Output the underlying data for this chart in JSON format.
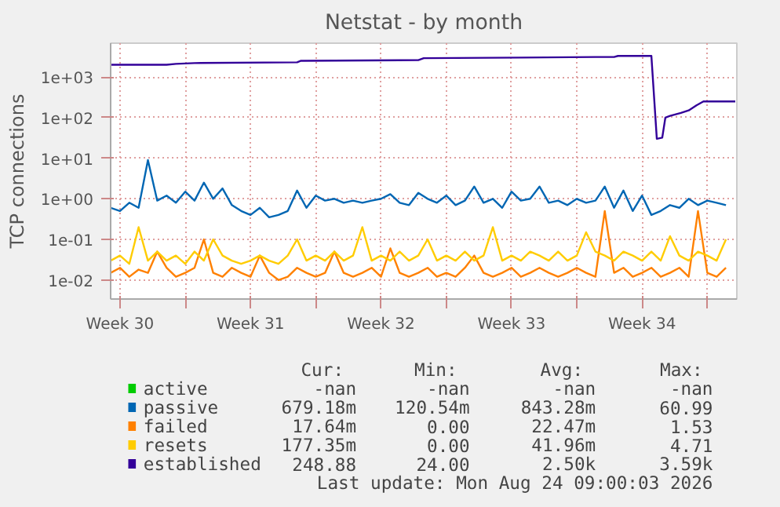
{
  "chart_data": {
    "type": "line",
    "title": "Netstat - by month",
    "ylabel": "TCP connections",
    "log": true,
    "grid": true,
    "legend": "bottom",
    "xlim": [
      "2026-07-23T00:00",
      "2026-08-25T14:00"
    ],
    "ylim": [
      0.0034,
      6800
    ],
    "xticks": [
      {
        "value": "2026-07-23T12:00",
        "label": "Week 30"
      },
      {
        "value": "2026-07-27",
        "label": null
      },
      {
        "value": "2026-07-30T12:00",
        "label": "Week 31"
      },
      {
        "value": "2026-08-03",
        "label": null
      },
      {
        "value": "2026-08-06T12:00",
        "label": "Week 32"
      },
      {
        "value": "2026-08-10",
        "label": null
      },
      {
        "value": "2026-08-13T12:00",
        "label": "Week 33"
      },
      {
        "value": "2026-08-17",
        "label": null
      },
      {
        "value": "2026-08-20T12:00",
        "label": "Week 34"
      },
      {
        "value": "2026-08-24",
        "label": null
      }
    ],
    "yticks": [
      {
        "value": 0.01,
        "label": "1e-02"
      },
      {
        "value": 0.1,
        "label": "1e-01"
      },
      {
        "value": 1,
        "label": "1e+00"
      },
      {
        "value": 10,
        "label": "1e+01"
      },
      {
        "value": 100,
        "label": "1e+02"
      },
      {
        "value": 1000,
        "label": "1e+03"
      }
    ],
    "x": [
      "2026-07-23T00:00",
      "2026-07-23T12:00",
      "2026-07-24T00:00",
      "2026-07-24T12:00",
      "2026-07-25T00:00",
      "2026-07-25T12:00",
      "2026-07-26T00:00",
      "2026-07-26T12:00",
      "2026-07-27T00:00",
      "2026-07-27T12:00",
      "2026-07-28T00:00",
      "2026-07-28T12:00",
      "2026-07-29T00:00",
      "2026-07-29T12:00",
      "2026-07-30T00:00",
      "2026-07-30T12:00",
      "2026-07-31T00:00",
      "2026-07-31T12:00",
      "2026-08-01T00:00",
      "2026-08-01T12:00",
      "2026-08-02T00:00",
      "2026-08-02T12:00",
      "2026-08-03T00:00",
      "2026-08-03T12:00",
      "2026-08-04T00:00",
      "2026-08-04T12:00",
      "2026-08-05T00:00",
      "2026-08-05T12:00",
      "2026-08-06T00:00",
      "2026-08-06T12:00",
      "2026-08-07T00:00",
      "2026-08-07T12:00",
      "2026-08-08T00:00",
      "2026-08-08T12:00",
      "2026-08-09T00:00",
      "2026-08-09T12:00",
      "2026-08-10T00:00",
      "2026-08-10T12:00",
      "2026-08-11T00:00",
      "2026-08-11T12:00",
      "2026-08-12T00:00",
      "2026-08-12T12:00",
      "2026-08-13T00:00",
      "2026-08-13T12:00",
      "2026-08-14T00:00",
      "2026-08-14T12:00",
      "2026-08-15T00:00",
      "2026-08-15T12:00",
      "2026-08-16T00:00",
      "2026-08-16T12:00",
      "2026-08-17T00:00",
      "2026-08-17T12:00",
      "2026-08-18T00:00",
      "2026-08-18T12:00",
      "2026-08-19T00:00",
      "2026-08-19T12:00",
      "2026-08-20T00:00",
      "2026-08-20T12:00",
      "2026-08-21T00:00",
      "2026-08-21T12:00",
      "2026-08-22T00:00",
      "2026-08-22T12:00",
      "2026-08-23T00:00",
      "2026-08-23T12:00",
      "2026-08-24T00:00",
      "2026-08-24T12:00",
      "2026-08-25T00:00"
    ],
    "series": [
      {
        "name": "active",
        "color": "#00cc00",
        "values": [
          null,
          null,
          null,
          null,
          null,
          null,
          null,
          null,
          null,
          null,
          null,
          null,
          null,
          null,
          null,
          null,
          null,
          null,
          null,
          null,
          null,
          null,
          null,
          null,
          null,
          null,
          null,
          null,
          null,
          null,
          null,
          null,
          null,
          null,
          null,
          null,
          null,
          null,
          null,
          null,
          null,
          null,
          null,
          null,
          null,
          null,
          null,
          null,
          null,
          null,
          null,
          null,
          null,
          null,
          null,
          null,
          null,
          null,
          null,
          null,
          null,
          null,
          null,
          null,
          null,
          null,
          null
        ]
      },
      {
        "name": "passive",
        "color": "#0066b3",
        "values": [
          0.6,
          0.5,
          0.8,
          0.6,
          9.0,
          0.9,
          1.2,
          0.8,
          1.5,
          0.9,
          2.5,
          1.0,
          1.8,
          0.7,
          0.5,
          0.4,
          0.6,
          0.35,
          0.4,
          0.5,
          1.6,
          0.6,
          1.2,
          0.9,
          1.0,
          0.8,
          0.9,
          0.8,
          0.9,
          1.0,
          1.3,
          0.8,
          0.7,
          1.4,
          1.0,
          0.8,
          1.2,
          0.7,
          0.9,
          2.0,
          0.8,
          1.0,
          0.6,
          1.5,
          0.9,
          1.0,
          2.0,
          0.8,
          0.9,
          0.7,
          1.0,
          0.8,
          0.9,
          2.0,
          0.6,
          1.6,
          0.5,
          1.2,
          0.4,
          0.5,
          0.7,
          0.6,
          1.0,
          0.7,
          0.9,
          0.8,
          0.7
        ]
      },
      {
        "name": "failed",
        "color": "#ff8000",
        "values": [
          0.015,
          0.02,
          0.012,
          0.018,
          0.015,
          0.05,
          0.02,
          0.012,
          0.015,
          0.02,
          0.1,
          0.015,
          0.012,
          0.02,
          0.015,
          0.012,
          0.04,
          0.015,
          0.01,
          0.012,
          0.02,
          0.015,
          0.012,
          0.015,
          0.05,
          0.015,
          0.012,
          0.015,
          0.02,
          0.012,
          0.06,
          0.015,
          0.012,
          0.015,
          0.02,
          0.012,
          0.015,
          0.012,
          0.02,
          0.04,
          0.015,
          0.012,
          0.015,
          0.02,
          0.012,
          0.015,
          0.02,
          0.015,
          0.012,
          0.015,
          0.02,
          0.015,
          0.012,
          0.5,
          0.015,
          0.02,
          0.012,
          0.015,
          0.02,
          0.012,
          0.015,
          0.02,
          0.012,
          0.5,
          0.015,
          0.012,
          0.02
        ]
      },
      {
        "name": "resets",
        "color": "#ffcc00",
        "values": [
          0.03,
          0.04,
          0.025,
          0.2,
          0.03,
          0.05,
          0.03,
          0.04,
          0.025,
          0.05,
          0.03,
          0.1,
          0.04,
          0.03,
          0.025,
          0.03,
          0.04,
          0.03,
          0.025,
          0.04,
          0.1,
          0.03,
          0.04,
          0.03,
          0.05,
          0.03,
          0.04,
          0.2,
          0.03,
          0.04,
          0.03,
          0.05,
          0.03,
          0.04,
          0.1,
          0.03,
          0.04,
          0.03,
          0.05,
          0.03,
          0.04,
          0.2,
          0.03,
          0.04,
          0.03,
          0.05,
          0.04,
          0.03,
          0.05,
          0.03,
          0.04,
          0.15,
          0.05,
          0.04,
          0.03,
          0.05,
          0.04,
          0.03,
          0.05,
          0.03,
          0.12,
          0.04,
          0.03,
          0.05,
          0.04,
          0.03,
          0.1
        ]
      },
      {
        "name": "established",
        "color": "#330099",
        "x": [
          "2026-07-23T00:00",
          "2026-07-26T00:00",
          "2026-07-26T12:00",
          "2026-07-27T12:00",
          "2026-08-02T00:00",
          "2026-08-02T05:00",
          "2026-08-08T12:00",
          "2026-08-08T19:00",
          "2026-08-14T00:00",
          "2026-08-18T00:00",
          "2026-08-19T00:00",
          "2026-08-19T05:00",
          "2026-08-20T17:00",
          "2026-08-21T00:00",
          "2026-08-21T07:00",
          "2026-08-21T14:00",
          "2026-08-21T18:00",
          "2026-08-22T00:00",
          "2026-08-22T14:00",
          "2026-08-23T00:00",
          "2026-08-23T10:00",
          "2026-08-23T19:00",
          "2026-08-24T05:00",
          "2026-08-25T12:00"
        ],
        "values": [
          2000,
          2000,
          2100,
          2200,
          2300,
          2500,
          2600,
          2900,
          3000,
          3100,
          3100,
          3300,
          3300,
          3300,
          30,
          32,
          100,
          110,
          130,
          150,
          200,
          250,
          250,
          250
        ]
      }
    ],
    "annotations": [
      "Cur:",
      "Min:",
      "Avg:",
      "Max:",
      "-nan",
      "-nan",
      "-nan",
      "-nan",
      "679.18m",
      "120.54m",
      "843.28m",
      "60.99",
      "17.64m",
      "0.00",
      "22.47m",
      "1.53",
      "177.35m",
      "0.00",
      "41.96m",
      "4.71",
      "248.88",
      "24.00",
      "2.50k",
      "3.59k",
      "Last update: Mon Aug 24 09:00:03 2026"
    ]
  }
}
